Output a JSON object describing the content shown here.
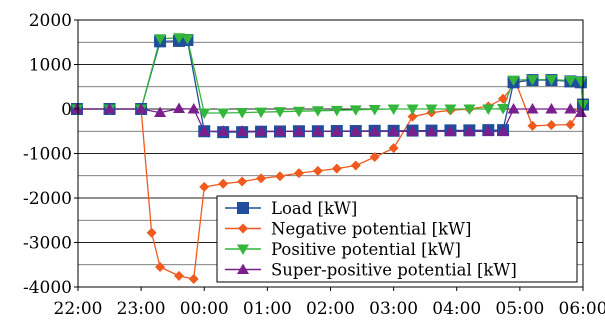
{
  "chart_data": {
    "type": "line",
    "title": "",
    "xlabel": "",
    "ylabel": "",
    "ylim": [
      -4000,
      2000
    ],
    "xlim": [
      "22:00",
      "06:00"
    ],
    "yticks": [
      2000,
      1000,
      0,
      -1000,
      -2000,
      -3000,
      -4000
    ],
    "ytick_labels": [
      "2000",
      "1000",
      "0",
      "-1000",
      "-2000",
      "-3000",
      "-4000"
    ],
    "xtick_labels": [
      "22:00",
      "23:00",
      "00:00",
      "01:00",
      "02:00",
      "03:00",
      "04:00",
      "05:00",
      "06:00"
    ],
    "grid": "horizontal",
    "legend_position": "bottom-right",
    "series": [
      {
        "name": "Load [kW]",
        "color": "#1f4e9c",
        "marker": "square",
        "points": [
          [
            "21:59",
            0
          ],
          [
            "22:30",
            0
          ],
          [
            "23:00",
            0
          ],
          [
            "23:18",
            1520
          ],
          [
            "23:36",
            1530
          ],
          [
            "23:44",
            1550
          ],
          [
            "00:00",
            -500
          ],
          [
            "00:18",
            -520
          ],
          [
            "00:36",
            -520
          ],
          [
            "00:54",
            -510
          ],
          [
            "01:12",
            -505
          ],
          [
            "01:30",
            -500
          ],
          [
            "01:48",
            -500
          ],
          [
            "02:06",
            -495
          ],
          [
            "02:24",
            -495
          ],
          [
            "02:42",
            -490
          ],
          [
            "03:00",
            -490
          ],
          [
            "03:18",
            -485
          ],
          [
            "03:36",
            -485
          ],
          [
            "03:54",
            -480
          ],
          [
            "04:12",
            -480
          ],
          [
            "04:30",
            -475
          ],
          [
            "04:44",
            -475
          ],
          [
            "04:54",
            600
          ],
          [
            "05:12",
            650
          ],
          [
            "05:30",
            650
          ],
          [
            "05:48",
            620
          ],
          [
            "05:58",
            600
          ],
          [
            "06:00",
            100
          ]
        ]
      },
      {
        "name": "Negative potential [kW]",
        "color": "#f05a1e",
        "marker": "diamond",
        "points": [
          [
            "21:59",
            0
          ],
          [
            "22:30",
            0
          ],
          [
            "23:00",
            0
          ],
          [
            "23:10",
            -2780
          ],
          [
            "23:18",
            -3550
          ],
          [
            "23:36",
            -3750
          ],
          [
            "23:50",
            -3820
          ],
          [
            "00:00",
            -1750
          ],
          [
            "00:18",
            -1680
          ],
          [
            "00:36",
            -1630
          ],
          [
            "00:54",
            -1560
          ],
          [
            "01:12",
            -1510
          ],
          [
            "01:30",
            -1440
          ],
          [
            "01:48",
            -1390
          ],
          [
            "02:06",
            -1340
          ],
          [
            "02:24",
            -1270
          ],
          [
            "02:42",
            -1080
          ],
          [
            "03:00",
            -880
          ],
          [
            "03:18",
            -170
          ],
          [
            "03:36",
            -80
          ],
          [
            "03:54",
            -30
          ],
          [
            "04:12",
            0
          ],
          [
            "04:30",
            60
          ],
          [
            "04:44",
            230
          ],
          [
            "04:56",
            600
          ],
          [
            "05:12",
            -380
          ],
          [
            "05:30",
            -360
          ],
          [
            "05:48",
            -350
          ],
          [
            "05:58",
            0
          ]
        ]
      },
      {
        "name": "Positive potential [kW]",
        "color": "#34b63c",
        "marker": "triangle-down",
        "points": [
          [
            "21:59",
            0
          ],
          [
            "22:30",
            0
          ],
          [
            "23:00",
            0
          ],
          [
            "23:18",
            1580
          ],
          [
            "23:36",
            1600
          ],
          [
            "23:44",
            1580
          ],
          [
            "00:00",
            -90
          ],
          [
            "00:18",
            -90
          ],
          [
            "00:36",
            -80
          ],
          [
            "00:54",
            -70
          ],
          [
            "01:12",
            -60
          ],
          [
            "01:30",
            -50
          ],
          [
            "01:48",
            -40
          ],
          [
            "02:06",
            -30
          ],
          [
            "02:24",
            -20
          ],
          [
            "02:42",
            -10
          ],
          [
            "03:00",
            0
          ],
          [
            "03:18",
            0
          ],
          [
            "03:36",
            0
          ],
          [
            "03:54",
            0
          ],
          [
            "04:12",
            0
          ],
          [
            "04:30",
            0
          ],
          [
            "04:44",
            10
          ],
          [
            "04:54",
            650
          ],
          [
            "05:12",
            660
          ],
          [
            "05:30",
            660
          ],
          [
            "05:48",
            640
          ],
          [
            "05:58",
            620
          ],
          [
            "06:00",
            100
          ]
        ]
      },
      {
        "name": "Super-positive potential [kW]",
        "color": "#7a1f8c",
        "marker": "triangle-up",
        "points": [
          [
            "21:59",
            0
          ],
          [
            "22:30",
            0
          ],
          [
            "23:00",
            0
          ],
          [
            "23:18",
            -80
          ],
          [
            "23:36",
            10
          ],
          [
            "23:50",
            0
          ],
          [
            "00:00",
            -500
          ],
          [
            "00:18",
            -500
          ],
          [
            "00:36",
            -500
          ],
          [
            "00:54",
            -500
          ],
          [
            "01:12",
            -500
          ],
          [
            "01:30",
            -500
          ],
          [
            "01:48",
            -500
          ],
          [
            "02:06",
            -500
          ],
          [
            "02:24",
            -500
          ],
          [
            "02:42",
            -500
          ],
          [
            "03:00",
            -500
          ],
          [
            "03:18",
            -500
          ],
          [
            "03:36",
            -500
          ],
          [
            "03:54",
            -500
          ],
          [
            "04:12",
            -500
          ],
          [
            "04:30",
            -500
          ],
          [
            "04:44",
            -500
          ],
          [
            "04:54",
            0
          ],
          [
            "05:12",
            0
          ],
          [
            "05:30",
            0
          ],
          [
            "05:48",
            0
          ],
          [
            "05:58",
            -80
          ]
        ]
      }
    ]
  }
}
